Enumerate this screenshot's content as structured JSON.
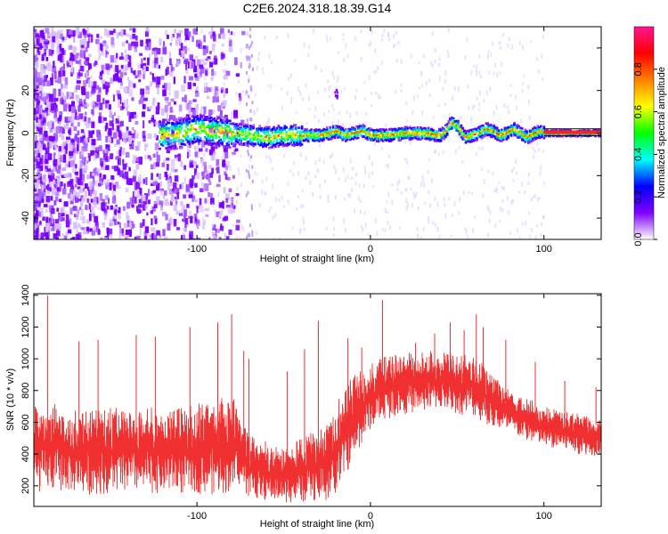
{
  "figure": {
    "title": "C2E6.2024.318.18.39.G14"
  },
  "chart_data": [
    {
      "type": "heatmap",
      "name": "spectrogram",
      "xlabel": "Height of straight line (km)",
      "ylabel": "Frequency (Hz)",
      "xlim": [
        -194,
        133
      ],
      "ylim": [
        -50,
        50
      ],
      "xticks": [
        -100,
        0,
        100
      ],
      "yticks": [
        -40,
        -20,
        0,
        20,
        40
      ],
      "grid": false,
      "colorbar": {
        "label": "Normalized spectral amplitude",
        "range": [
          0,
          1
        ],
        "ticks": [
          "0.0",
          "0.2",
          "0.4",
          "0.6",
          "0.8"
        ],
        "colormap": [
          "#ffffff",
          "#8000ff",
          "#0000ff",
          "#00ffff",
          "#00ff00",
          "#ffff00",
          "#ff8000",
          "#ff0000",
          "#ff1493"
        ]
      },
      "ridge": {
        "description": "dominant frequency trace vs height",
        "x": [
          -122,
          -110,
          -100,
          -90,
          -80,
          -70,
          -60,
          -50,
          -40,
          -30,
          -24,
          -20,
          -15,
          -10,
          -5,
          0,
          10,
          20,
          30,
          40,
          44,
          46,
          50,
          54,
          58,
          62,
          66,
          70,
          74,
          78,
          82,
          86,
          90,
          94,
          98,
          100,
          110,
          120,
          133
        ],
        "y": [
          -1,
          0,
          2,
          1,
          0,
          -1,
          -2,
          -1,
          -1,
          -1,
          0,
          1,
          -1,
          0,
          1,
          -1,
          -1,
          0,
          0,
          -1,
          2,
          5,
          3,
          -2,
          -1,
          0,
          2,
          1,
          -1,
          0,
          2,
          0,
          -2,
          0,
          1,
          0,
          0,
          0,
          0
        ]
      }
    },
    {
      "type": "line",
      "name": "snr",
      "xlabel": "Height of straight line (km)",
      "ylabel": "SNR (10 * v/v)",
      "xlim": [
        -194,
        133
      ],
      "ylim": [
        70,
        1410
      ],
      "xticks": [
        -100,
        0,
        100
      ],
      "yticks": [
        200,
        400,
        600,
        800,
        1000,
        1200,
        1400
      ],
      "grid": false,
      "series": [
        {
          "color": "#f03030",
          "x": [
            -194,
            -180,
            -170,
            -160,
            -150,
            -140,
            -130,
            -120,
            -110,
            -100,
            -90,
            -80,
            -75,
            -70,
            -60,
            -50,
            -40,
            -30,
            -25,
            -20,
            -15,
            -10,
            -5,
            0,
            5,
            10,
            20,
            30,
            40,
            50,
            60,
            70,
            80,
            90,
            100,
            110,
            120,
            133
          ],
          "low": [
            150,
            160,
            150,
            140,
            150,
            150,
            140,
            150,
            140,
            150,
            140,
            150,
            200,
            120,
            100,
            90,
            90,
            100,
            100,
            150,
            250,
            350,
            450,
            550,
            600,
            620,
            650,
            660,
            680,
            650,
            630,
            560,
            520,
            480,
            440,
            420,
            400,
            380
          ],
          "high": [
            700,
            720,
            700,
            690,
            700,
            680,
            700,
            690,
            700,
            720,
            760,
            780,
            640,
            520,
            480,
            460,
            500,
            560,
            620,
            720,
            820,
            900,
            940,
            980,
            1000,
            1020,
            1040,
            1060,
            1050,
            1020,
            1060,
            900,
            800,
            760,
            700,
            680,
            660,
            640
          ],
          "spikes": [
            [
              -186,
              1400
            ],
            [
              -168,
              1110
            ],
            [
              -157,
              1120
            ],
            [
              -135,
              1150
            ],
            [
              -124,
              1140
            ],
            [
              -104,
              1200
            ],
            [
              -88,
              1230
            ],
            [
              -80,
              1280
            ],
            [
              -73,
              1050
            ],
            [
              -70,
              1000
            ],
            [
              -48,
              920
            ],
            [
              -38,
              1060
            ],
            [
              -30,
              1240
            ],
            [
              -13,
              1130
            ],
            [
              -5,
              1070
            ],
            [
              7,
              1370
            ],
            [
              26,
              1100
            ],
            [
              37,
              1160
            ],
            [
              46,
              1230
            ],
            [
              54,
              1180
            ],
            [
              61,
              1280
            ],
            [
              65,
              1200
            ],
            [
              78,
              1120
            ],
            [
              95,
              980
            ],
            [
              112,
              860
            ],
            [
              130,
              820
            ]
          ]
        }
      ]
    }
  ]
}
